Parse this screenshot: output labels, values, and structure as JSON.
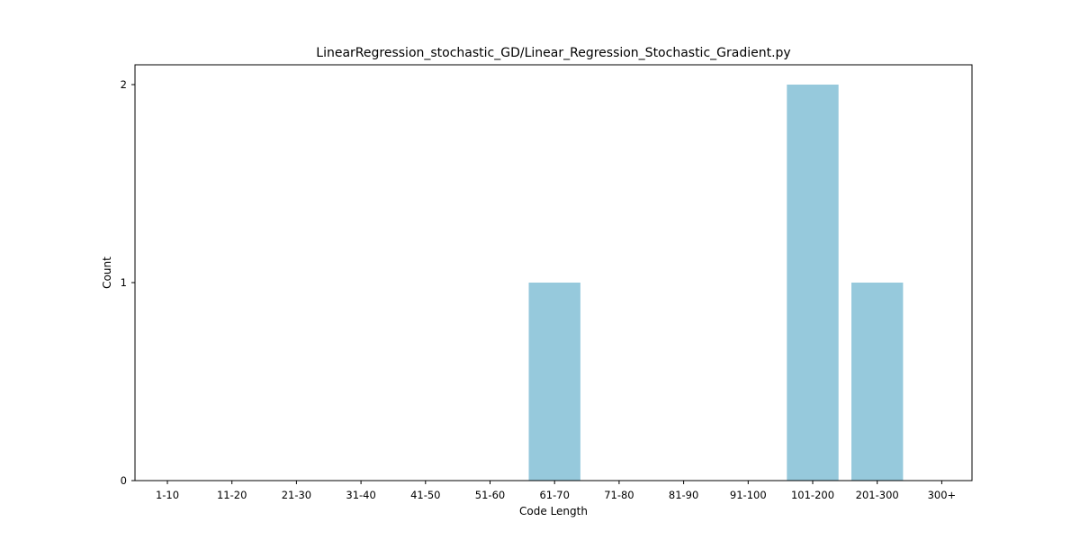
{
  "chart_data": {
    "type": "bar",
    "title": "LinearRegression_stochastic_GD/Linear_Regression_Stochastic_Gradient.py",
    "xlabel": "Code Length",
    "ylabel": "Count",
    "categories": [
      "1-10",
      "11-20",
      "21-30",
      "31-40",
      "41-50",
      "51-60",
      "61-70",
      "71-80",
      "81-90",
      "91-100",
      "101-200",
      "201-300",
      "300+"
    ],
    "values": [
      0,
      0,
      0,
      0,
      0,
      0,
      1,
      0,
      0,
      0,
      2,
      1,
      0
    ],
    "yticks": [
      0,
      1,
      2
    ],
    "ylim": [
      0,
      2.1
    ],
    "grid": false,
    "bar_color": "#96c9dc"
  }
}
